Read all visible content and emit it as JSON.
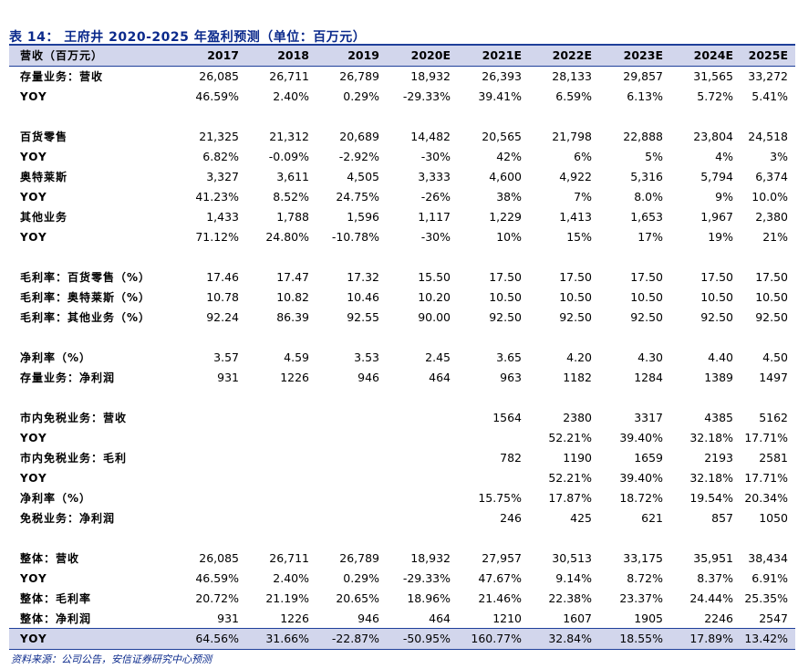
{
  "title": "表 14： 王府井 2020-2025 年盈利预测（单位：百万元）",
  "header": {
    "label": "营收（百万元）",
    "years": [
      "2017",
      "2018",
      "2019",
      "2020E",
      "2021E",
      "2022E",
      "2023E",
      "2024E",
      "2025E"
    ]
  },
  "rows": [
    {
      "label": "存量业务：营收",
      "values": [
        "26,085",
        "26,711",
        "26,789",
        "18,932",
        "26,393",
        "28,133",
        "29,857",
        "31,565",
        "33,272"
      ]
    },
    {
      "label": "YOY",
      "values": [
        "46.59%",
        "2.40%",
        "0.29%",
        "-29.33%",
        "39.41%",
        "6.59%",
        "6.13%",
        "5.72%",
        "5.41%"
      ]
    },
    {
      "label": "",
      "values": [
        "",
        "",
        "",
        "",
        "",
        "",
        "",
        "",
        ""
      ]
    },
    {
      "label": "百货零售",
      "values": [
        "21,325",
        "21,312",
        "20,689",
        "14,482",
        "20,565",
        "21,798",
        "22,888",
        "23,804",
        "24,518"
      ]
    },
    {
      "label": "YOY",
      "values": [
        "6.82%",
        "-0.09%",
        "-2.92%",
        "-30%",
        "42%",
        "6%",
        "5%",
        "4%",
        "3%"
      ]
    },
    {
      "label": "奥特莱斯",
      "values": [
        "3,327",
        "3,611",
        "4,505",
        "3,333",
        "4,600",
        "4,922",
        "5,316",
        "5,794",
        "6,374"
      ]
    },
    {
      "label": "YOY",
      "values": [
        "41.23%",
        "8.52%",
        "24.75%",
        "-26%",
        "38%",
        "7%",
        "8.0%",
        "9%",
        "10.0%"
      ]
    },
    {
      "label": "其他业务",
      "values": [
        "1,433",
        "1,788",
        "1,596",
        "1,117",
        "1,229",
        "1,413",
        "1,653",
        "1,967",
        "2,380"
      ]
    },
    {
      "label": "YOY",
      "values": [
        "71.12%",
        "24.80%",
        "-10.78%",
        "-30%",
        "10%",
        "15%",
        "17%",
        "19%",
        "21%"
      ]
    },
    {
      "label": "",
      "values": [
        "",
        "",
        "",
        "",
        "",
        "",
        "",
        "",
        ""
      ]
    },
    {
      "label": "毛利率：百货零售（%）",
      "values": [
        "17.46",
        "17.47",
        "17.32",
        "15.50",
        "17.50",
        "17.50",
        "17.50",
        "17.50",
        "17.50"
      ]
    },
    {
      "label": "毛利率：奥特莱斯（%）",
      "values": [
        "10.78",
        "10.82",
        "10.46",
        "10.20",
        "10.50",
        "10.50",
        "10.50",
        "10.50",
        "10.50"
      ]
    },
    {
      "label": "毛利率：其他业务（%）",
      "values": [
        "92.24",
        "86.39",
        "92.55",
        "90.00",
        "92.50",
        "92.50",
        "92.50",
        "92.50",
        "92.50"
      ]
    },
    {
      "label": "",
      "values": [
        "",
        "",
        "",
        "",
        "",
        "",
        "",
        "",
        ""
      ]
    },
    {
      "label": "净利率（%）",
      "values": [
        "3.57",
        "4.59",
        "3.53",
        "2.45",
        "3.65",
        "4.20",
        "4.30",
        "4.40",
        "4.50"
      ]
    },
    {
      "label": "存量业务：净利润",
      "values": [
        "931",
        "1226",
        "946",
        "464",
        "963",
        "1182",
        "1284",
        "1389",
        "1497"
      ]
    },
    {
      "label": "",
      "values": [
        "",
        "",
        "",
        "",
        "",
        "",
        "",
        "",
        ""
      ]
    },
    {
      "label": "市内免税业务：营收",
      "values": [
        "",
        "",
        "",
        "",
        "1564",
        "2380",
        "3317",
        "4385",
        "5162"
      ]
    },
    {
      "label": "YOY",
      "values": [
        "",
        "",
        "",
        "",
        "",
        "52.21%",
        "39.40%",
        "32.18%",
        "17.71%"
      ]
    },
    {
      "label": "市内免税业务：毛利",
      "values": [
        "",
        "",
        "",
        "",
        "782",
        "1190",
        "1659",
        "2193",
        "2581"
      ]
    },
    {
      "label": "YOY",
      "values": [
        "",
        "",
        "",
        "",
        "",
        "52.21%",
        "39.40%",
        "32.18%",
        "17.71%"
      ]
    },
    {
      "label": "净利率（%）",
      "values": [
        "",
        "",
        "",
        "",
        "15.75%",
        "17.87%",
        "18.72%",
        "19.54%",
        "20.34%"
      ]
    },
    {
      "label": "免税业务：净利润",
      "values": [
        "",
        "",
        "",
        "",
        "246",
        "425",
        "621",
        "857",
        "1050"
      ]
    },
    {
      "label": "",
      "values": [
        "",
        "",
        "",
        "",
        "",
        "",
        "",
        "",
        ""
      ]
    },
    {
      "label": "整体：营收",
      "values": [
        "26,085",
        "26,711",
        "26,789",
        "18,932",
        "27,957",
        "30,513",
        "33,175",
        "35,951",
        "38,434"
      ]
    },
    {
      "label": "YOY",
      "values": [
        "46.59%",
        "2.40%",
        "0.29%",
        "-29.33%",
        "47.67%",
        "9.14%",
        "8.72%",
        "8.37%",
        "6.91%"
      ]
    },
    {
      "label": "整体：毛利率",
      "values": [
        "20.72%",
        "21.19%",
        "20.65%",
        "18.96%",
        "21.46%",
        "22.38%",
        "23.37%",
        "24.44%",
        "25.35%"
      ]
    },
    {
      "label": "整体：净利润",
      "values": [
        "931",
        "1226",
        "946",
        "464",
        "1210",
        "1607",
        "1905",
        "2246",
        "2547"
      ]
    },
    {
      "label": "YOY",
      "values": [
        "64.56%",
        "31.66%",
        "-22.87%",
        "-50.95%",
        "160.77%",
        "32.84%",
        "18.55%",
        "17.89%",
        "13.42%"
      ]
    }
  ],
  "source": "资料来源：公司公告，安信证券研究中心预测"
}
